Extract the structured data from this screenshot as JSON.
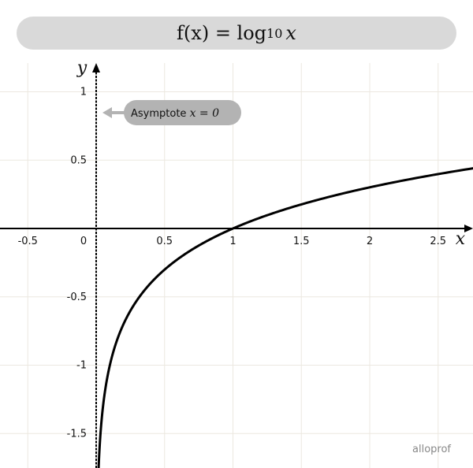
{
  "chart_data": {
    "type": "line",
    "title": "f(x) = log10 x",
    "title_parts": {
      "lhs": "f(x) = log",
      "base": "10",
      "var": "x"
    },
    "xlabel": "x",
    "ylabel": "y",
    "xlim": [
      -0.71,
      2.76
    ],
    "ylim": [
      -1.76,
      1.21
    ],
    "xticks": [
      -0.5,
      0,
      0.5,
      1,
      1.5,
      2,
      2.5
    ],
    "xtick_labels": [
      "-0.5",
      "0",
      "0.5",
      "1",
      "1.5",
      "2",
      "2.5"
    ],
    "yticks": [
      1,
      0.5,
      -0.5,
      -1,
      -1.5
    ],
    "ytick_labels": [
      "1",
      "0.5",
      "-0.5",
      "-1",
      "-1.5"
    ],
    "grid": true,
    "function": "log10",
    "series": [
      {
        "x_range": [
          0.0175,
          2.76
        ]
      }
    ],
    "asymptote": {
      "x": 0,
      "label": "Asymptote",
      "equation": "x = 0"
    },
    "colors": {
      "curve": "#000000",
      "grid": "#ece8e0",
      "title_bg": "#d9d9d9",
      "label_bg": "#b3b3b3"
    }
  },
  "logo": "alloprof"
}
